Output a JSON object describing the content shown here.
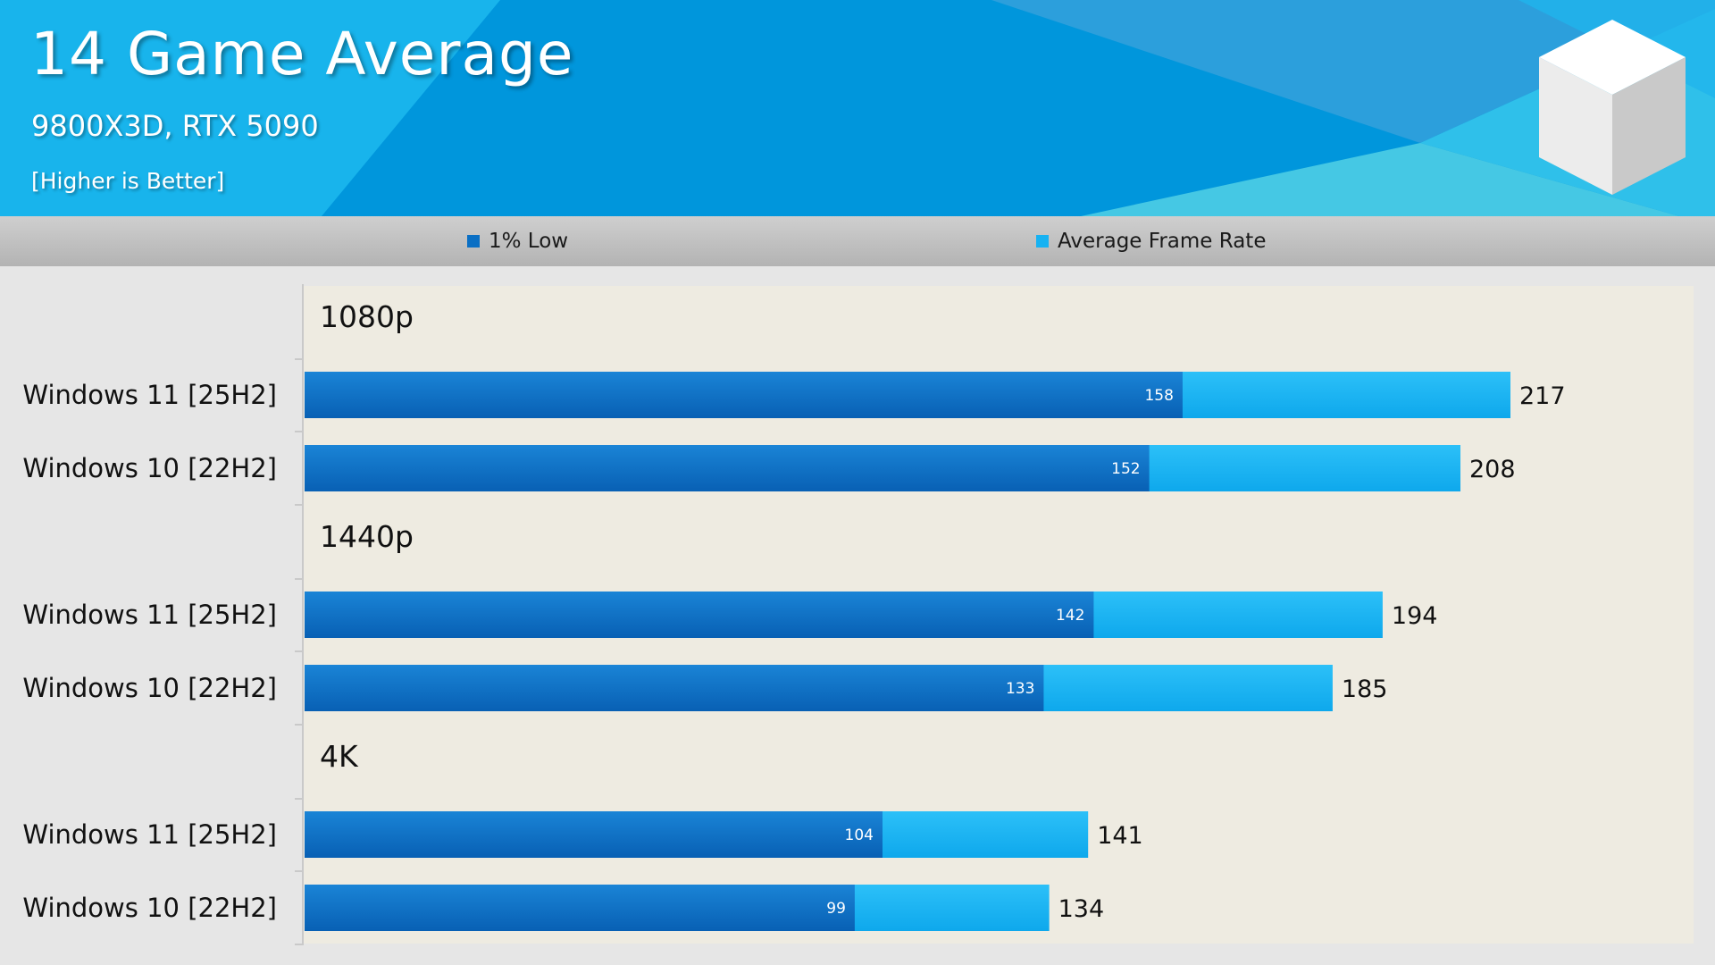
{
  "header": {
    "title": "14 Game Average",
    "subtitle": "9800X3D, RTX 5090",
    "note": "[Higher is Better]"
  },
  "legend": [
    {
      "label": "1% Low",
      "color": "#0a6fc4"
    },
    {
      "label": "Average Frame Rate",
      "color": "#17b2f2"
    }
  ],
  "chart_data": {
    "type": "bar",
    "orientation": "horizontal",
    "stacked_overlay": true,
    "title": "14 Game Average",
    "subtitle": "9800X3D, RTX 5090",
    "xlim": [
      0,
      230
    ],
    "groups": [
      {
        "label": "1080p",
        "categories": [
          "Windows 11 [25H2]",
          "Windows 10 [22H2]"
        ],
        "low": [
          158,
          152
        ],
        "avg": [
          217,
          208
        ]
      },
      {
        "label": "1440p",
        "categories": [
          "Windows 11 [25H2]",
          "Windows 10 [22H2]"
        ],
        "low": [
          142,
          133
        ],
        "avg": [
          194,
          185
        ]
      },
      {
        "label": "4K",
        "categories": [
          "Windows 11 [25H2]",
          "Windows 10 [22H2]"
        ],
        "low": [
          104,
          99
        ],
        "avg": [
          141,
          134
        ]
      }
    ],
    "series": [
      {
        "name": "1% Low",
        "color": "#0a6fc4"
      },
      {
        "name": "Average Frame Rate",
        "color": "#17b2f2"
      }
    ]
  }
}
